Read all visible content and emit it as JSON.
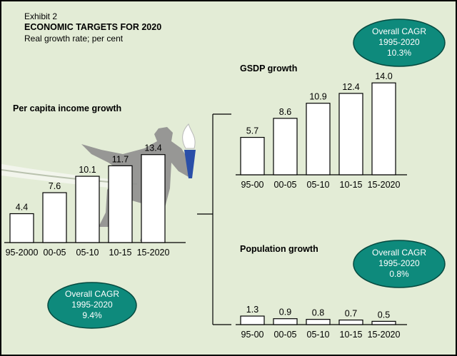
{
  "header": {
    "exhibit": "Exhibit 2",
    "title": "ECONOMIC TARGETS FOR 2020",
    "subtitle": "Real growth rate; per cent"
  },
  "colors": {
    "background": "#e3ecd6",
    "oval": "#0e8a7c",
    "bar_fill": "#ffffff",
    "silhouette": "#8e8e8e",
    "torch": "#2a4fa8"
  },
  "callouts": {
    "per_capita": [
      "Overall CAGR",
      "1995-2020",
      "9.4%"
    ],
    "gsdp": [
      "Overall CAGR",
      "1995-2020",
      "10.3%"
    ],
    "population": [
      "Overall CAGR",
      "1995-2020",
      "0.8%"
    ]
  },
  "chart_data": [
    {
      "id": "per_capita",
      "type": "bar",
      "title": "Per capita income growth",
      "categories": [
        "95-2000",
        "00-05",
        "05-10",
        "10-15",
        "15-2020"
      ],
      "values": [
        4.4,
        7.6,
        10.1,
        11.7,
        13.4
      ],
      "value_labels": [
        "4.4",
        "7.6",
        "10.1",
        "11.7",
        "13.4"
      ],
      "ylim": [
        0,
        14
      ]
    },
    {
      "id": "gsdp",
      "type": "bar",
      "title": "GSDP growth",
      "categories": [
        "95-00",
        "00-05",
        "05-10",
        "10-15",
        "15-2020"
      ],
      "values": [
        5.7,
        8.6,
        10.9,
        12.4,
        14.0
      ],
      "value_labels": [
        "5.7",
        "8.6",
        "10.9",
        "12.4",
        "14.0"
      ],
      "ylim": [
        0,
        14
      ]
    },
    {
      "id": "population",
      "type": "bar",
      "title": "Population growth",
      "categories": [
        "95-00",
        "00-05",
        "05-10",
        "10-15",
        "15-2020"
      ],
      "values": [
        1.3,
        0.9,
        0.8,
        0.7,
        0.5
      ],
      "value_labels": [
        "1.3",
        "0.9",
        "0.8",
        "0.7",
        "0.5"
      ],
      "ylim": [
        0,
        14
      ]
    }
  ]
}
